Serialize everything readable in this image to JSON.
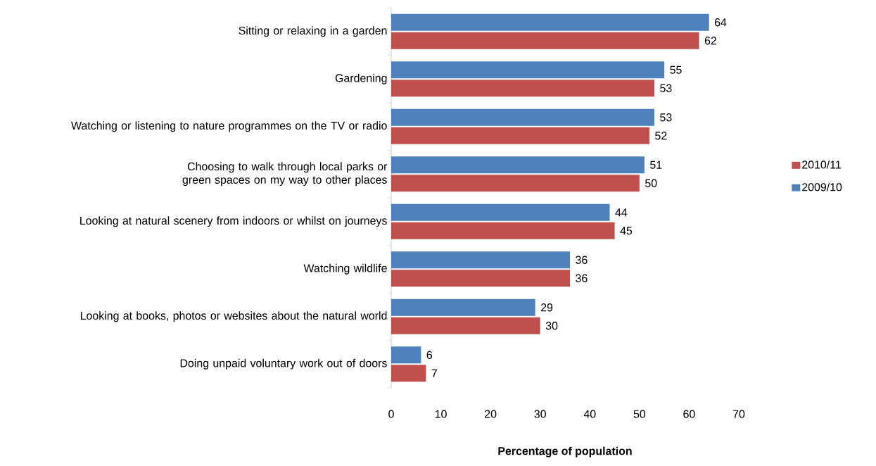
{
  "chart_data": {
    "type": "bar",
    "orientation": "horizontal",
    "xlabel": "Percentage of population",
    "categories": [
      "Sitting or relaxing in a garden",
      "Gardening",
      "Watching or listening to nature programmes on the TV or radio",
      "Choosing to walk through local parks or green spaces on my way to other places",
      "Looking at natural scenery from indoors or whilst on journeys",
      "Watching wildlife",
      "Looking at books, photos or websites about the natural world",
      "Doing unpaid voluntary work out of doors"
    ],
    "series": [
      {
        "name": "2010/11",
        "color": "#c0504d",
        "values": [
          62,
          53,
          52,
          50,
          45,
          36,
          30,
          7
        ]
      },
      {
        "name": "2009/10",
        "color": "#4f81bd",
        "values": [
          64,
          55,
          53,
          51,
          44,
          36,
          29,
          6
        ]
      }
    ],
    "xlim": [
      0,
      70
    ],
    "xticks": [
      0,
      10,
      20,
      30,
      40,
      50,
      60,
      70
    ],
    "data_labels": true,
    "legend": "right"
  }
}
